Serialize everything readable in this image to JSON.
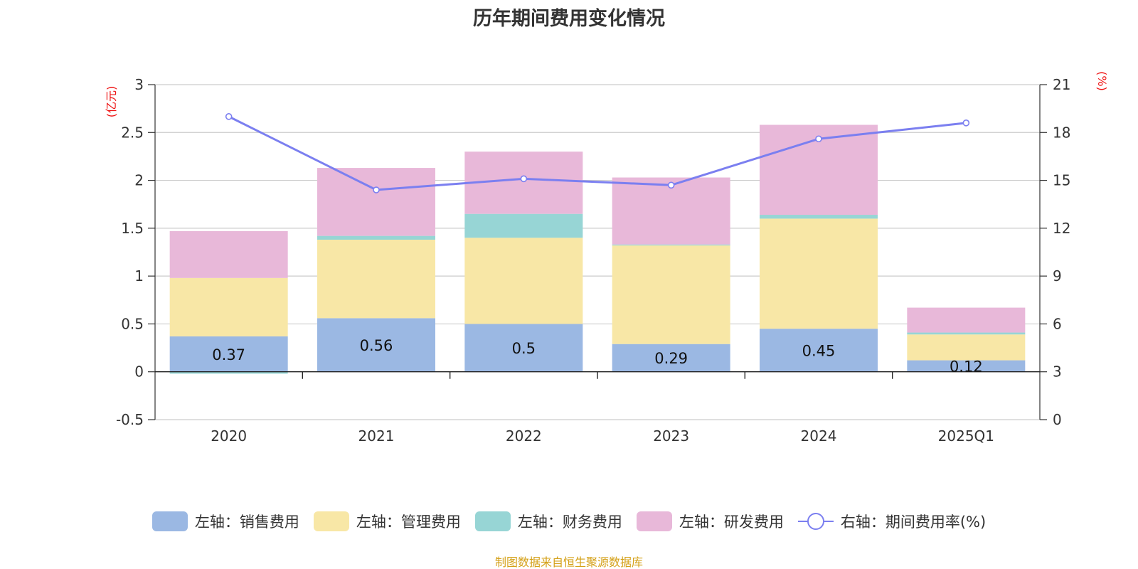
{
  "chart_data": {
    "type": "bar",
    "title": "历年期间费用变化情况",
    "categories": [
      "2020",
      "2021",
      "2022",
      "2023",
      "2024",
      "2025Q1"
    ],
    "series": [
      {
        "name": "左轴：销售费用",
        "type": "bar",
        "axis": "left",
        "color": "#9bb8e3",
        "values": [
          0.37,
          0.56,
          0.5,
          0.29,
          0.45,
          0.12
        ],
        "labels": [
          "0.37",
          "0.56",
          "0.5",
          "0.29",
          "0.45",
          "0.12"
        ]
      },
      {
        "name": "左轴：管理费用",
        "type": "bar",
        "axis": "left",
        "color": "#f8e7a6",
        "values": [
          0.61,
          0.82,
          0.9,
          1.03,
          1.15,
          0.27
        ]
      },
      {
        "name": "左轴：财务费用",
        "type": "bar",
        "axis": "left",
        "color": "#97d5d5",
        "values": [
          -0.02,
          0.04,
          0.25,
          0.01,
          0.04,
          0.02
        ]
      },
      {
        "name": "左轴：研发费用",
        "type": "bar",
        "axis": "left",
        "color": "#e8b8d9",
        "values": [
          0.49,
          0.71,
          0.65,
          0.7,
          0.94,
          0.26
        ]
      },
      {
        "name": "右轴：期间费用率(%)",
        "type": "line",
        "axis": "right",
        "color": "#7b7ff0",
        "values": [
          19.0,
          14.4,
          15.1,
          14.7,
          17.6,
          18.6
        ]
      }
    ],
    "y_left": {
      "unit": "(亿元)",
      "range": [
        -0.5,
        3
      ],
      "ticks": [
        "-0.5",
        "0",
        "0.5",
        "1",
        "1.5",
        "2",
        "2.5",
        "3"
      ]
    },
    "y_right": {
      "unit": "(%)",
      "range": [
        0,
        21
      ],
      "ticks": [
        "0",
        "3",
        "6",
        "9",
        "12",
        "15",
        "18",
        "21"
      ]
    },
    "grid": true,
    "legend_position": "bottom"
  },
  "source_note": "制图数据来自恒生聚源数据库"
}
